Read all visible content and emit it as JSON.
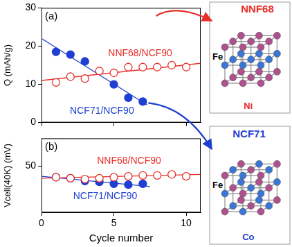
{
  "chart_data": [
    {
      "type": "scatter",
      "title": "(a)",
      "y_label": "Q (mAh/g)",
      "xlim": [
        0,
        11
      ],
      "xticks": [
        0,
        5,
        10
      ],
      "ylim": [
        0,
        30
      ],
      "yticks": [
        0,
        10,
        20,
        30
      ],
      "tick_labels": "y",
      "grid": false,
      "series": [
        {
          "name": "NNF68/NCF90",
          "color": "#e8302a",
          "marker": "open_circle",
          "x": [
            1,
            2,
            3,
            4,
            5,
            6,
            7,
            8,
            9,
            10
          ],
          "values": [
            10.5,
            12,
            11.5,
            13.5,
            13,
            14.5,
            14.5,
            14.5,
            15,
            14.5
          ],
          "fit": {
            "x": [
              0,
              11
            ],
            "values": [
              11,
              15.5
            ]
          }
        },
        {
          "name": "NCF71/NCF90",
          "color": "#1f3fd0",
          "marker": "filled_circle",
          "x": [
            1,
            2,
            3,
            5,
            6,
            7
          ],
          "values": [
            18.5,
            17.8,
            16,
            10,
            6.5,
            5.5
          ],
          "fit": {
            "x": [
              0,
              7.3
            ],
            "values": [
              22,
              4.6
            ]
          }
        }
      ]
    },
    {
      "type": "scatter",
      "title": "(b)",
      "x_label": "Cycle number",
      "y_label": "Vcell(40K) (mV)",
      "xlim": [
        0,
        11
      ],
      "xticks": [
        0,
        5,
        10
      ],
      "ylim": [
        0,
        80
      ],
      "yticks": [
        50
      ],
      "grid": false,
      "series": [
        {
          "name": "NNF68/NCF90",
          "color": "#e8302a",
          "marker": "open_circle",
          "x": [
            1,
            2,
            3,
            4,
            5,
            6,
            7,
            8,
            9,
            10
          ],
          "values": [
            38,
            37,
            36,
            37,
            38,
            39,
            40,
            40,
            41,
            39
          ],
          "fit": {
            "x": [
              0,
              11
            ],
            "values": [
              37,
              41
            ]
          }
        },
        {
          "name": "NCF71/NCF90",
          "color": "#1f3fd0",
          "marker": "filled_circle",
          "x": [
            1,
            2,
            3,
            4,
            5,
            6,
            7
          ],
          "values": [
            38,
            37,
            34,
            33,
            31,
            30,
            31
          ],
          "fit": {
            "x": [
              0,
              7.5
            ],
            "values": [
              39,
              28
            ]
          }
        }
      ]
    }
  ],
  "structures": [
    {
      "title": "NNF68",
      "color": "#e8302a",
      "atoms": [
        {
          "name": "Fe",
          "color": "#b0508f"
        },
        {
          "name": "Ni",
          "color": "#3a76d6"
        }
      ]
    },
    {
      "title": "NCF71",
      "color": "#1f3fd0",
      "atoms": [
        {
          "name": "Fe",
          "color": "#b0508f"
        },
        {
          "name": "Co",
          "color": "#3a76d6"
        }
      ]
    }
  ]
}
